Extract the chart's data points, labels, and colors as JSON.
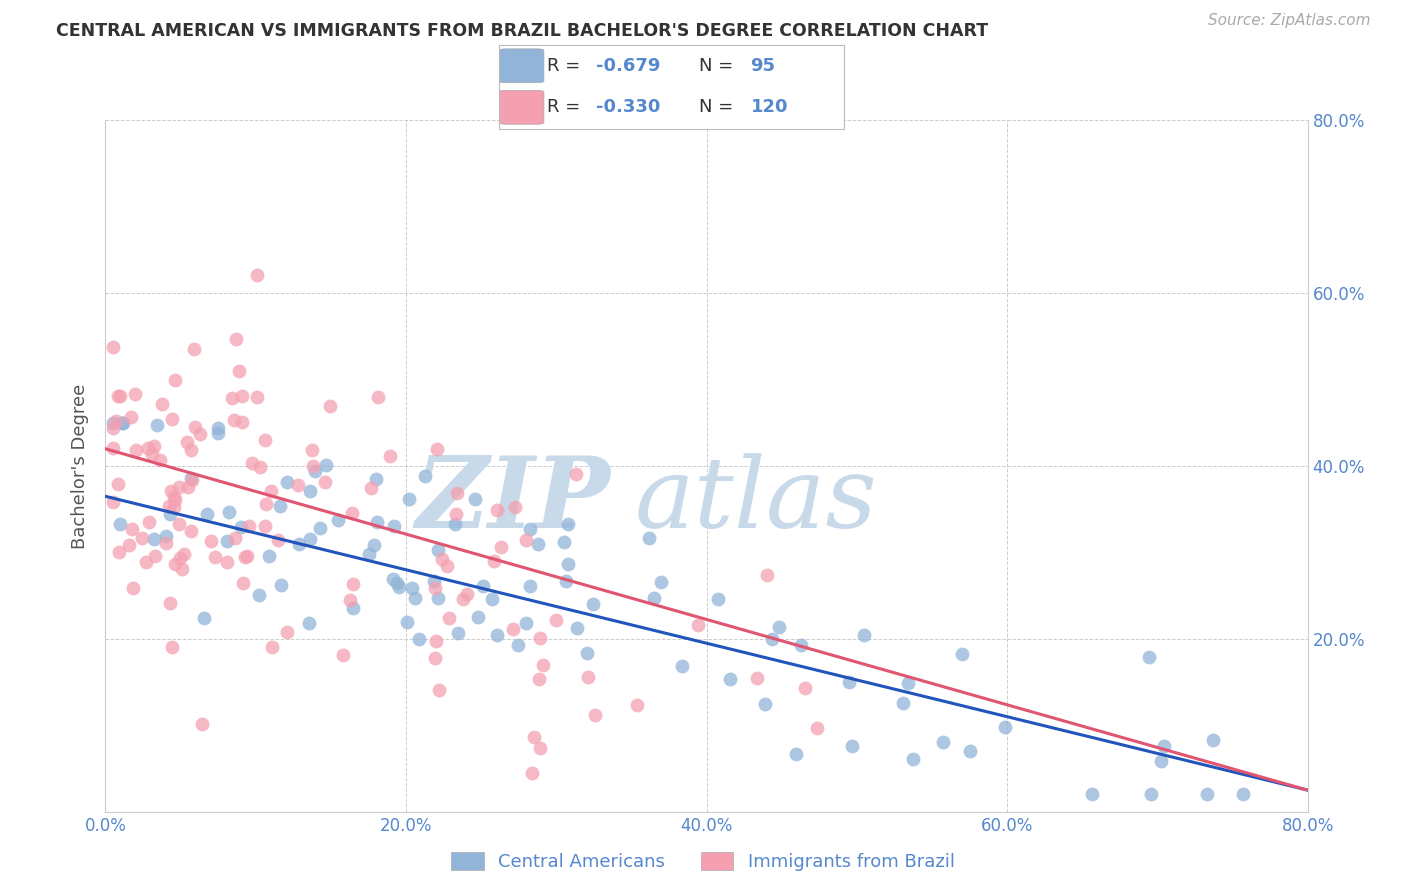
{
  "title": "CENTRAL AMERICAN VS IMMIGRANTS FROM BRAZIL BACHELOR'S DEGREE CORRELATION CHART",
  "source": "Source: ZipAtlas.com",
  "ylabel": "Bachelor's Degree",
  "x_min": 0.0,
  "x_max": 0.8,
  "y_min": 0.0,
  "y_max": 0.8,
  "x_ticks": [
    0.0,
    0.2,
    0.4,
    0.6,
    0.8
  ],
  "y_ticks": [
    0.0,
    0.2,
    0.4,
    0.6,
    0.8
  ],
  "right_y_ticks": [
    0.2,
    0.4,
    0.6,
    0.8
  ],
  "blue_R": "-0.679",
  "blue_N": "95",
  "pink_R": "-0.330",
  "pink_N": "120",
  "blue_color": "#92B4D8",
  "pink_color": "#F4A0B0",
  "blue_line_color": "#2255BB",
  "pink_line_color": "#E05570",
  "grid_color": "#C8C8C8",
  "title_color": "#333333",
  "axis_label_color": "#5588CC",
  "watermark_zip_color": "#C8DAEA",
  "watermark_atlas_color": "#C8DAEA",
  "legend_text_color": "#333333",
  "legend_value_color": "#5588CC",
  "legend_blue_label": "Central Americans",
  "legend_pink_label": "Immigrants from Brazil",
  "background_color": "#FFFFFF",
  "blue_line_x0": 0.0,
  "blue_line_y0": 0.365,
  "blue_line_x1": 0.8,
  "blue_line_y1": 0.025,
  "pink_line_x0": 0.0,
  "pink_line_y0": 0.42,
  "pink_line_x1": 0.8,
  "pink_line_y1": 0.025
}
